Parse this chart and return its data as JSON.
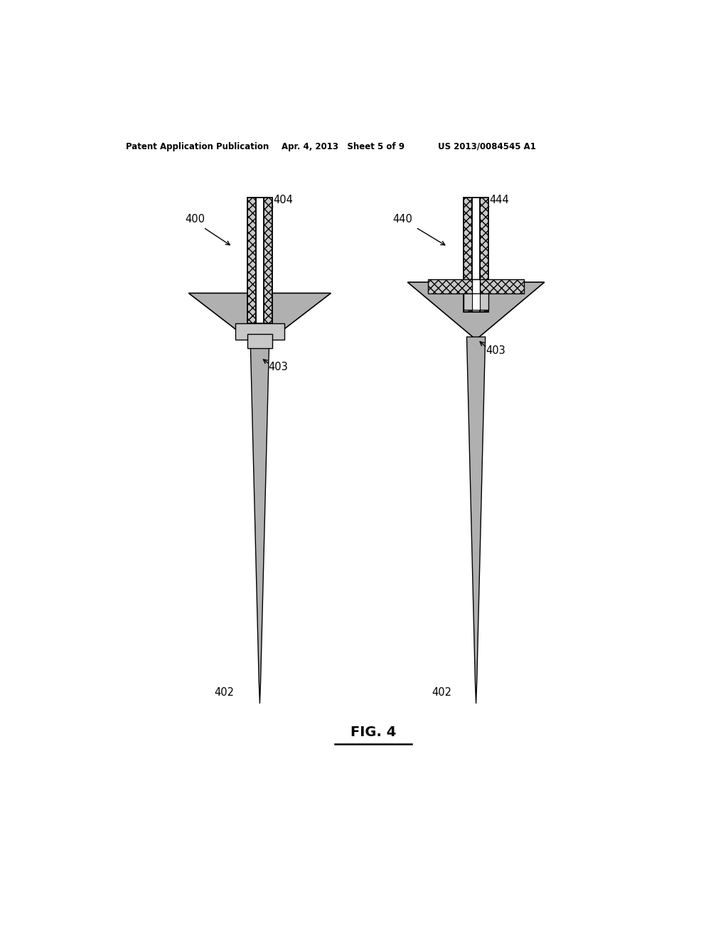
{
  "background_color": "#ffffff",
  "header_left": "Patent Application Publication",
  "header_mid": "Apr. 4, 2013   Sheet 5 of 9",
  "header_right": "US 2013/0084545 A1",
  "fig_label": "FIG. 4",
  "hatch_color": "#c8c8c8",
  "shaft_color": "#b0b0b0",
  "black": "#000000",
  "white": "#ffffff"
}
